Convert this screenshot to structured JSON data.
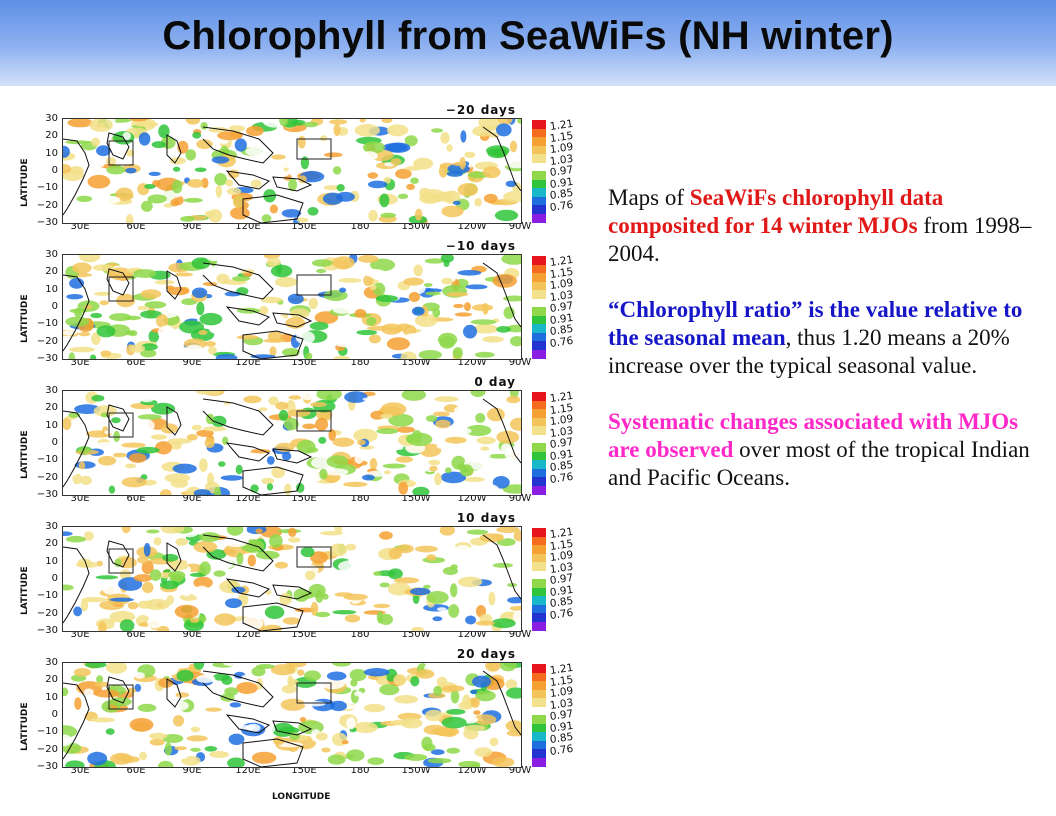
{
  "title": "Chlorophyll from SeaWiFs (NH winter)",
  "map_data": {
    "ylabel": "LATITUDE",
    "xlabel": "LONGITUDE",
    "lat_ticks": [
      "30",
      "20",
      "10",
      "0",
      "−10",
      "−20",
      "−30"
    ],
    "lon_ticks": [
      "30E",
      "60E",
      "90E",
      "120E",
      "150E",
      "180",
      "150W",
      "120W",
      "90W"
    ],
    "colorbar_labels": [
      "1.21",
      "1.15",
      "1.09",
      "1.03",
      "0.97",
      "0.91",
      "0.85",
      "0.76"
    ],
    "colorbar_colors": [
      "#e8141c",
      "#f46a1e",
      "#f5a032",
      "#f3c45a",
      "#f2e08a",
      "#ffffff",
      "#8ed84a",
      "#2fc43a",
      "#18b8c8",
      "#1e6ee0",
      "#2233d0",
      "#8a1ee0"
    ],
    "panels": [
      {
        "title": "−20 days"
      },
      {
        "title": "−10 days"
      },
      {
        "title": "0 day"
      },
      {
        "title": "10 days"
      },
      {
        "title": "20 days"
      }
    ]
  },
  "text": {
    "p1": {
      "a": "Maps of ",
      "b": "SeaWiFs chlorophyll data composited for 14 winter MJOs",
      "c": " from 1998–2004."
    },
    "p2": {
      "a": "“Chlorophyll  ratio” is the value relative to the seasonal mean",
      "b": ", thus 1.20 means a 20% increase over the typical seasonal value."
    },
    "p3": {
      "a": "Systematic changes associated with MJOs are observed",
      "b": " over most of the tropical Indian and Pacific Oceans."
    }
  }
}
